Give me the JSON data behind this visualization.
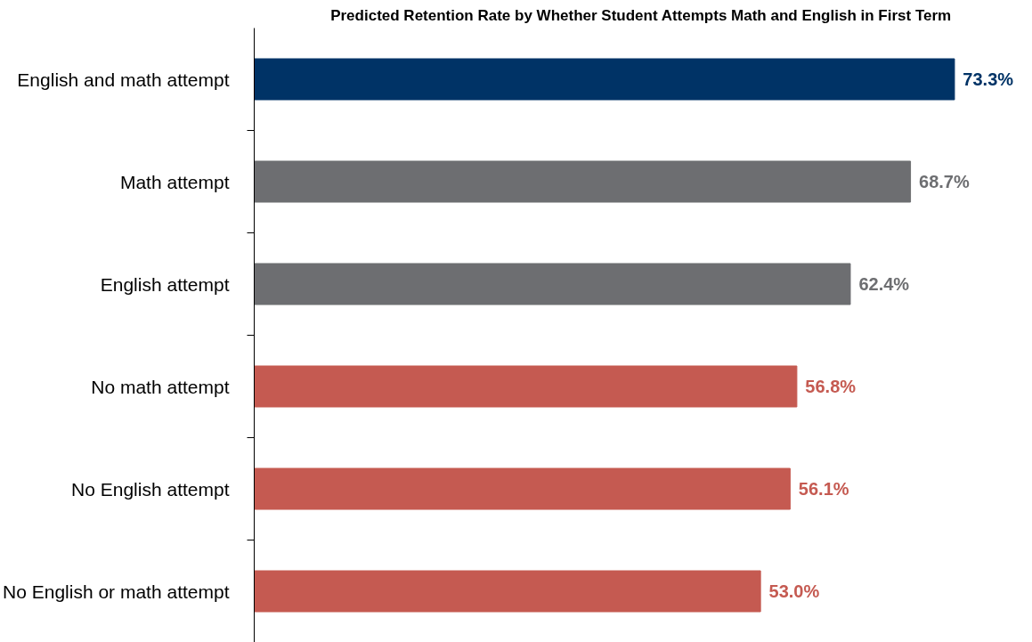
{
  "chart_data": {
    "type": "bar",
    "orientation": "horizontal",
    "title": "Predicted Retention Rate by Whether Student Attempts Math and English in First Term",
    "categories": [
      "English and math attempt",
      "Math attempt",
      "English attempt",
      "No math attempt",
      "No English attempt",
      "No English or math attempt"
    ],
    "values": [
      73.3,
      68.7,
      62.4,
      56.8,
      56.1,
      53.0
    ],
    "colors": [
      "#003366",
      "#6d6e71",
      "#6d6e71",
      "#c55a51",
      "#c55a51",
      "#c55a51"
    ],
    "value_labels": [
      "73.3%",
      "68.7%",
      "62.4%",
      "56.8%",
      "56.1%",
      "53.0%"
    ],
    "tick_labels": "y",
    "grid": false
  }
}
